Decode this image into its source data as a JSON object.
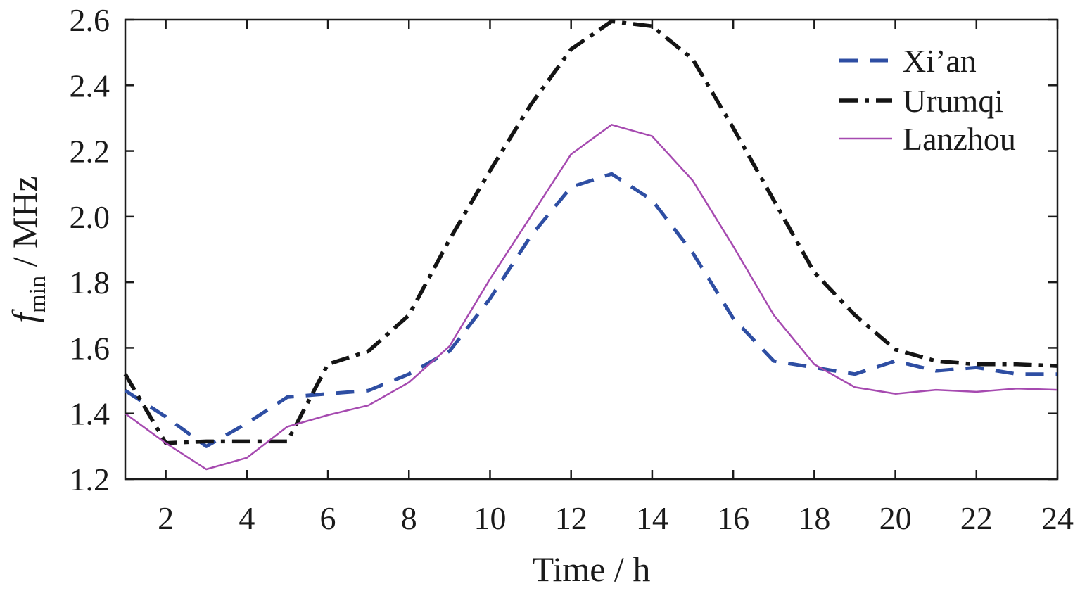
{
  "chart_data": {
    "type": "line",
    "title": "",
    "xlabel": "Time / h",
    "ylabel": {
      "main": "f",
      "subscript": "min",
      "suffix": " / MHz"
    },
    "xlim": [
      1,
      24
    ],
    "ylim": [
      1.2,
      2.6
    ],
    "xticks": [
      2,
      4,
      6,
      8,
      10,
      12,
      14,
      16,
      18,
      20,
      22,
      24
    ],
    "yticks": [
      1.2,
      1.4,
      1.6,
      1.8,
      2.0,
      2.2,
      2.4,
      2.6
    ],
    "ytick_labels": [
      "1.2",
      "1.4",
      "1.6",
      "1.8",
      "2.0",
      "2.2",
      "2.4",
      "2.6"
    ],
    "grid": false,
    "legend_position": "top-right",
    "x": [
      1,
      2,
      3,
      4,
      5,
      6,
      7,
      8,
      9,
      10,
      11,
      12,
      13,
      14,
      15,
      16,
      17,
      18,
      19,
      20,
      21,
      22,
      23,
      24
    ],
    "series": [
      {
        "name": "Xi’an",
        "color": "#2e4ea3",
        "style": "dashed",
        "values": [
          1.47,
          1.39,
          1.3,
          1.37,
          1.45,
          1.46,
          1.47,
          1.52,
          1.59,
          1.75,
          1.94,
          2.09,
          2.13,
          2.05,
          1.89,
          1.69,
          1.56,
          1.54,
          1.52,
          1.56,
          1.53,
          1.54,
          1.52,
          1.52
        ]
      },
      {
        "name": "Urumqi",
        "color": "#141414",
        "style": "dashdot",
        "values": [
          1.52,
          1.31,
          1.315,
          1.315,
          1.315,
          1.55,
          1.59,
          1.7,
          1.93,
          2.14,
          2.34,
          2.51,
          2.595,
          2.58,
          2.48,
          2.27,
          2.05,
          1.83,
          1.7,
          1.595,
          1.56,
          1.55,
          1.55,
          1.545
        ]
      },
      {
        "name": "Lanzhou",
        "color": "#a64ab0",
        "style": "solid",
        "values": [
          1.4,
          1.31,
          1.23,
          1.265,
          1.36,
          1.395,
          1.425,
          1.495,
          1.605,
          1.81,
          2.0,
          2.19,
          2.28,
          2.245,
          2.11,
          1.91,
          1.7,
          1.55,
          1.48,
          1.46,
          1.472,
          1.466,
          1.476,
          1.472
        ]
      }
    ]
  }
}
